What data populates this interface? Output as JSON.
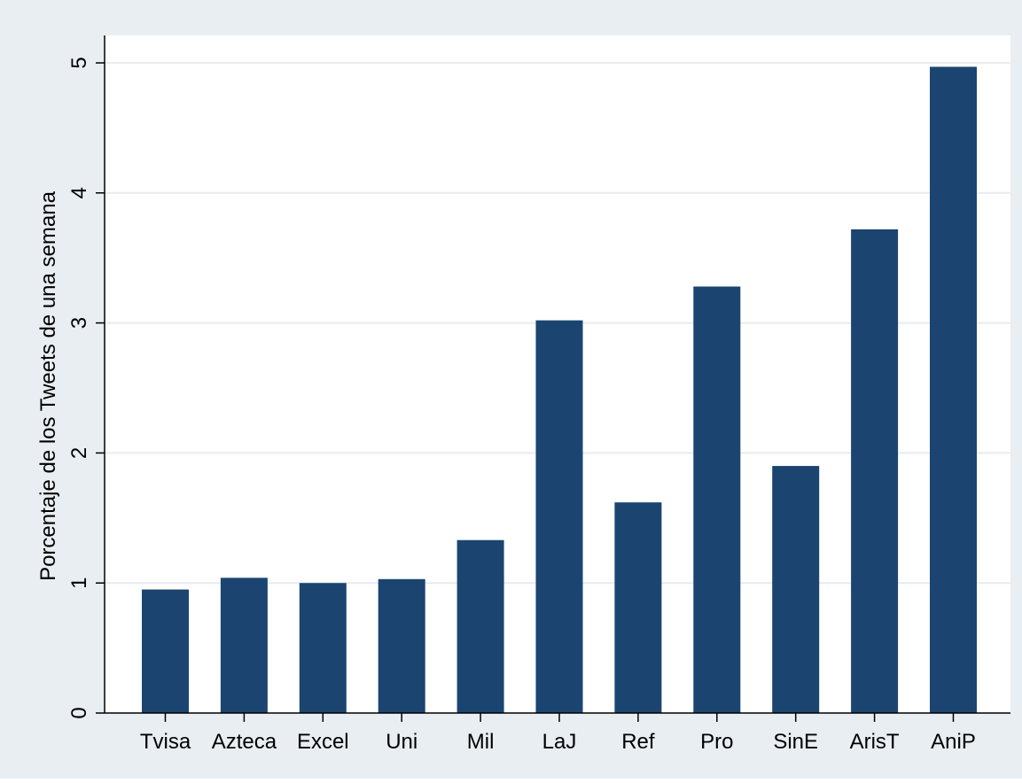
{
  "chart_data": {
    "type": "bar",
    "categories": [
      "Tvisa",
      "Azteca",
      "Excel",
      "Uni",
      "Mil",
      "LaJ",
      "Ref",
      "Pro",
      "SinE",
      "ArisT",
      "AniP"
    ],
    "values": [
      0.95,
      1.04,
      1.0,
      1.03,
      1.33,
      3.02,
      1.62,
      3.28,
      1.9,
      3.72,
      4.97
    ],
    "ylabel": "Porcentaje de los Tweets de una semana",
    "xlabel": "",
    "ylim": [
      0,
      5.2
    ],
    "yticks": [
      0,
      1,
      2,
      3,
      4,
      5
    ],
    "ytick_labels": [
      "0",
      "1",
      "2",
      "3",
      "4",
      "5"
    ],
    "grid": true,
    "bar_color": "#1b4570",
    "background_outer": "#e8eef2",
    "background_plot": "#ffffff",
    "grid_color": "#e6ecf0"
  }
}
